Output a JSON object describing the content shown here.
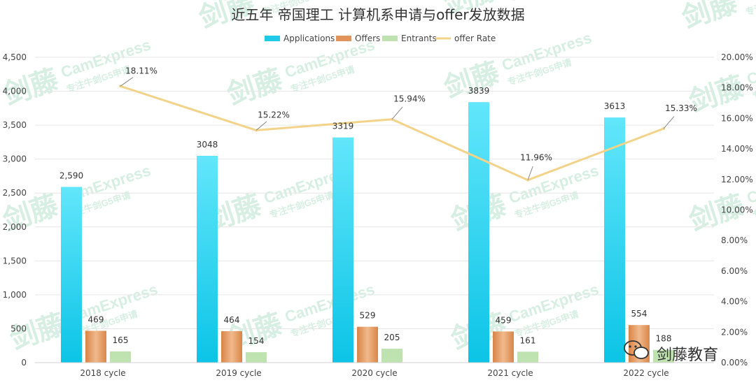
{
  "chart_data": {
    "type": "bar",
    "title": "近五年 帝国理工 计算机系申请与offer发放数据",
    "categories": [
      "2018 cycle",
      "2019 cycle",
      "2020 cycle",
      "2021 cycle",
      "2022 cycle"
    ],
    "series": [
      {
        "name": "Applications",
        "type": "bar",
        "axis": "left",
        "values": [
          2590,
          3048,
          3319,
          3839,
          3613
        ],
        "labels": [
          "2,590",
          "3048",
          "3319",
          "3839",
          "3613"
        ],
        "color": "#22c8e8"
      },
      {
        "name": "Offers",
        "type": "bar",
        "axis": "left",
        "values": [
          469,
          464,
          529,
          459,
          554
        ],
        "labels": [
          "469",
          "464",
          "529",
          "459",
          "554"
        ],
        "color": "#e0935a"
      },
      {
        "name": "Entrants",
        "type": "bar",
        "axis": "left",
        "values": [
          165,
          154,
          205,
          161,
          188
        ],
        "labels": [
          "165",
          "154",
          "205",
          "161",
          "188"
        ],
        "color": "#bfe3b0"
      },
      {
        "name": "offer Rate",
        "type": "line",
        "axis": "right",
        "values": [
          18.11,
          15.22,
          15.94,
          11.96,
          15.33
        ],
        "labels": [
          "18.11%",
          "15.22%",
          "15.94%",
          "11.96%",
          "15.33%"
        ],
        "color": "#f3d38a"
      }
    ],
    "y_left": {
      "ylim": [
        0,
        4500
      ],
      "ticks": [
        "0",
        "500",
        "1,000",
        "1,500",
        "2,000",
        "2,500",
        "3,000",
        "3,500",
        "4,000",
        "4,500"
      ]
    },
    "y_right": {
      "ylim": [
        0,
        20
      ],
      "ticks": [
        "0.00%",
        "2.00%",
        "4.00%",
        "6.00%",
        "8.00%",
        "10.00%",
        "12.00%",
        "14.00%",
        "16.00%",
        "18.00%",
        "20.00%"
      ]
    },
    "grid": true,
    "legend": "top-center"
  },
  "watermark": {
    "brand_cn": "剑藤",
    "brand_en": "CamExpress",
    "tagline": "专注牛剑G5申请"
  },
  "logo": {
    "icon": "wechat-icon",
    "text": "剑藤教育"
  },
  "colors": {
    "gridline": "#e6e6e6",
    "axis": "#d0d0d0"
  }
}
